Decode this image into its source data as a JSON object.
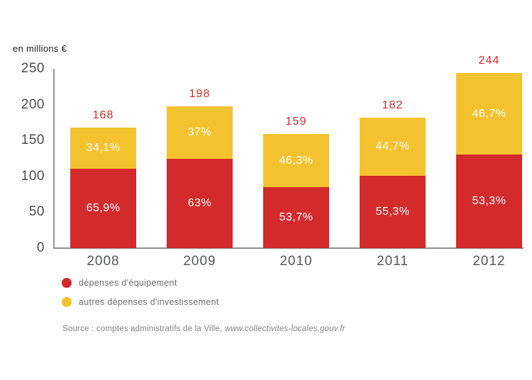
{
  "chart_data": {
    "type": "bar",
    "subtype": "stacked",
    "ylabel": "en millions €",
    "categories": [
      "2008",
      "2009",
      "2010",
      "2011",
      "2012"
    ],
    "totals": [
      168,
      198,
      159,
      182,
      244
    ],
    "total_labels": [
      "168",
      "198",
      "159",
      "182",
      "244"
    ],
    "series": [
      {
        "name": "dépenses d'équipement",
        "color": "#d32a2b",
        "percents": [
          65.9,
          63,
          53.7,
          55.3,
          53.3
        ],
        "percent_labels": [
          "65,9%",
          "63%",
          "53,7%",
          "55,3%",
          "53,3%"
        ]
      },
      {
        "name": "autres dépenses d'investissement",
        "color": "#f5c22f",
        "percents": [
          34.1,
          37,
          46.3,
          44.7,
          46.7
        ],
        "percent_labels": [
          "34,1%",
          "37%",
          "46,3%",
          "44,7%",
          "46,7%"
        ]
      }
    ],
    "yticks": [
      0,
      50,
      100,
      150,
      200,
      250
    ],
    "ylim": [
      0,
      250
    ],
    "grid": false,
    "legend_position": "bottom-left",
    "total_label_color": "#d3292b"
  },
  "source": {
    "prefix": "Source : comptes administratifs de la Ville, ",
    "italic": "www.collectivites-locales.gouv.fr"
  }
}
